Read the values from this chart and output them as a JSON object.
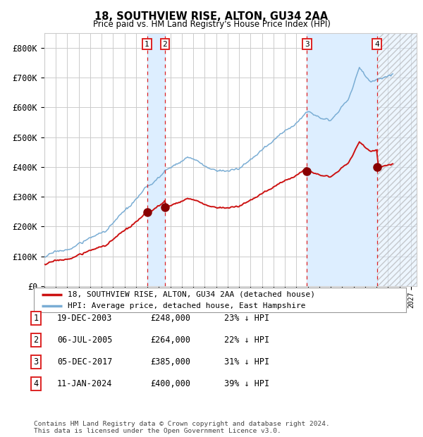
{
  "title": "18, SOUTHVIEW RISE, ALTON, GU34 2AA",
  "subtitle": "Price paid vs. HM Land Registry's House Price Index (HPI)",
  "ylim": [
    0,
    850000
  ],
  "yticks": [
    0,
    100000,
    200000,
    300000,
    400000,
    500000,
    600000,
    700000,
    800000
  ],
  "ytick_labels": [
    "£0",
    "£100K",
    "£200K",
    "£300K",
    "£400K",
    "£500K",
    "£600K",
    "£700K",
    "£800K"
  ],
  "xlim_start": 1995.0,
  "xlim_end": 2027.5,
  "hpi_color": "#7aadd4",
  "price_color": "#cc1111",
  "marker_color": "#880000",
  "vline_color": "#dd2222",
  "shade_color": "#ddeeff",
  "grid_color": "#cccccc",
  "bg_color": "#ffffff",
  "transactions": [
    {
      "date_num": 2003.96,
      "price": 248000,
      "label": "1"
    },
    {
      "date_num": 2005.51,
      "price": 264000,
      "label": "2"
    },
    {
      "date_num": 2017.92,
      "price": 385000,
      "label": "3"
    },
    {
      "date_num": 2024.03,
      "price": 400000,
      "label": "4"
    }
  ],
  "legend_entries": [
    {
      "label": "18, SOUTHVIEW RISE, ALTON, GU34 2AA (detached house)",
      "color": "#cc1111"
    },
    {
      "label": "HPI: Average price, detached house, East Hampshire",
      "color": "#7aadd4"
    }
  ],
  "table_entries": [
    {
      "num": "1",
      "date": "19-DEC-2003",
      "price": "£248,000",
      "hpi": "23% ↓ HPI"
    },
    {
      "num": "2",
      "date": "06-JUL-2005",
      "price": "£264,000",
      "hpi": "22% ↓ HPI"
    },
    {
      "num": "3",
      "date": "05-DEC-2017",
      "price": "£385,000",
      "hpi": "31% ↓ HPI"
    },
    {
      "num": "4",
      "date": "11-JAN-2024",
      "price": "£400,000",
      "hpi": "39% ↓ HPI"
    }
  ],
  "footnote1": "Contains HM Land Registry data © Crown copyright and database right 2024.",
  "footnote2": "This data is licensed under the Open Government Licence v3.0."
}
